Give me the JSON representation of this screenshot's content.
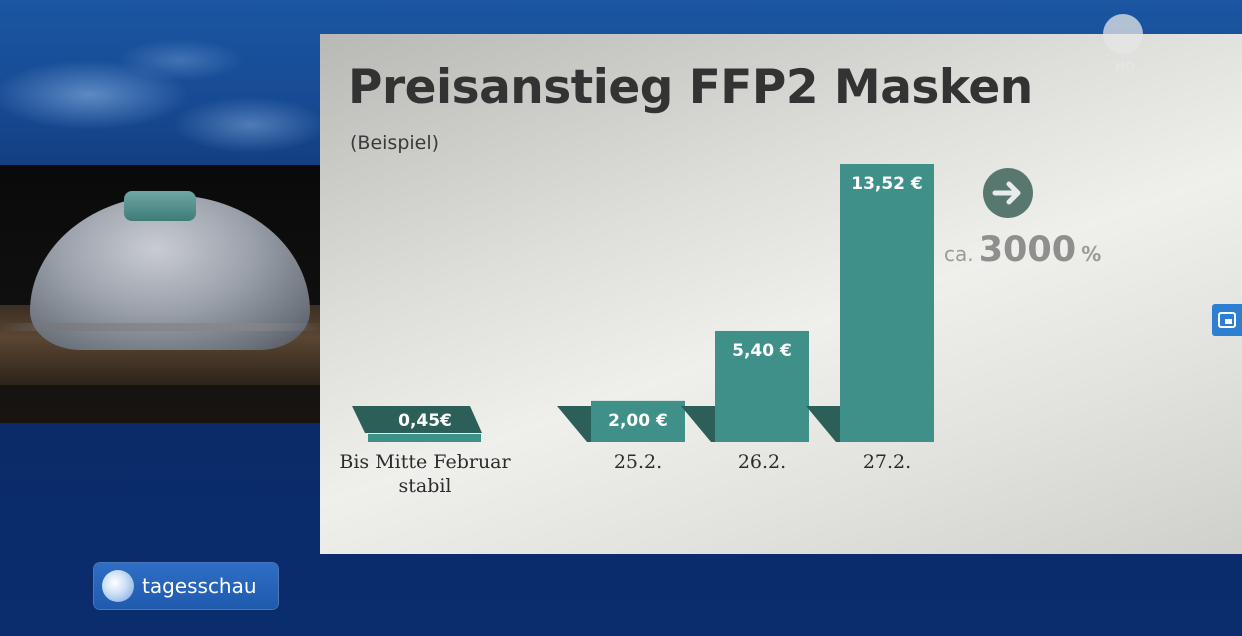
{
  "broadcast": {
    "brand_name": "tagesschau",
    "hd_badge": "HD",
    "colors": {
      "bar": "#3f9088",
      "bar_shadow": "#2d5f59",
      "brand_blue": "#1f5aad"
    }
  },
  "icons": {
    "mask_image": "ffp2-mask-photo",
    "trend": "arrow-right-icon",
    "channel": "ard-one-logo-icon",
    "side": "screen-mode-icon"
  },
  "chart_data": {
    "type": "bar",
    "title": "Preisanstieg FFP2 Masken",
    "subtitle": "(Beispiel)",
    "categories": [
      "Bis Mitte Februar stabil",
      "25.2.",
      "26.2.",
      "27.2."
    ],
    "category_lines": [
      [
        "Bis Mitte Februar",
        "stabil"
      ],
      [
        "25.2."
      ],
      [
        "26.2."
      ],
      [
        "27.2."
      ]
    ],
    "values": [
      0.45,
      2.0,
      5.4,
      13.52
    ],
    "value_labels": [
      "0,45€",
      "2,00 €",
      "5,40 €",
      "13,52 €"
    ],
    "ylim": [
      0,
      13.52
    ],
    "grid": false,
    "annotation": {
      "prefix": "ca.",
      "value": "3000",
      "unit": "%"
    }
  }
}
